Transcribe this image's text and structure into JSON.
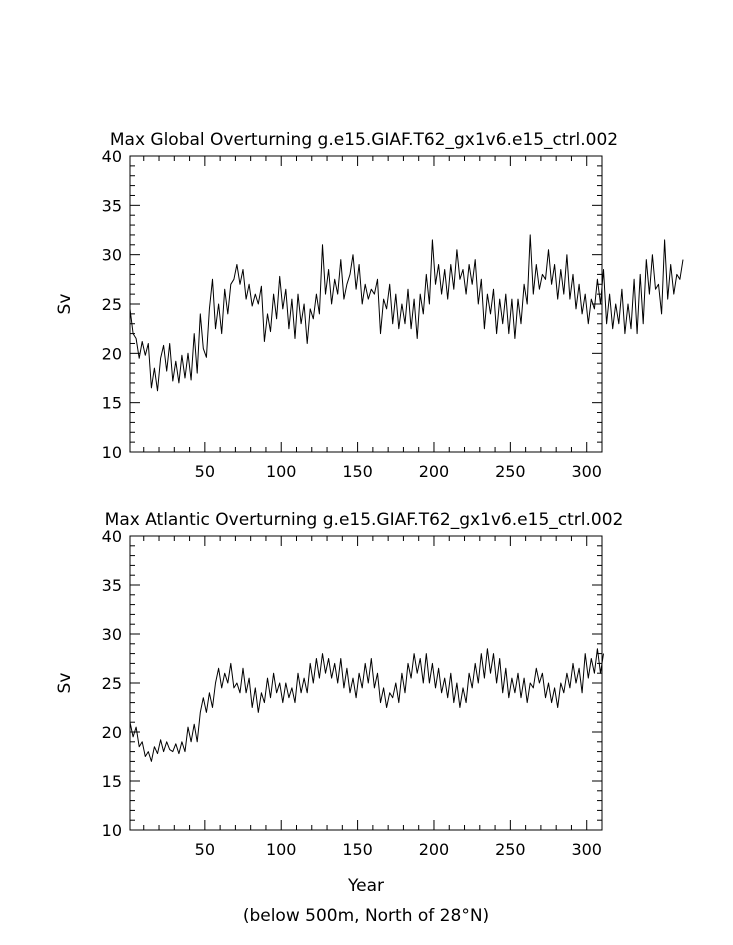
{
  "footer_note": "(below 500m, North of 28°N)",
  "chart_data": [
    {
      "type": "line",
      "title": "Max Global Overturning g.e15.GIAF.T62_gx1v6.e15_ctrl.002",
      "xlabel": "",
      "ylabel": "Sv",
      "xlim": [
        1,
        310
      ],
      "ylim": [
        10,
        40
      ],
      "xticks": [
        50,
        100,
        150,
        200,
        250,
        300
      ],
      "yticks": [
        10,
        15,
        20,
        25,
        30,
        35,
        40
      ],
      "grid": false,
      "line_color": "#000000",
      "x_start": 1,
      "x_step": 2,
      "series": [
        {
          "values": [
            24.5,
            22.0,
            21.5,
            19.5,
            21.2,
            19.8,
            21.0,
            16.5,
            18.5,
            16.2,
            19.5,
            20.8,
            18.2,
            21.0,
            17.2,
            19.2,
            17.0,
            19.8,
            17.5,
            20.0,
            17.3,
            22.0,
            18.0,
            24.0,
            20.5,
            19.6,
            24.5,
            27.5,
            22.5,
            25.0,
            22.0,
            26.5,
            24.0,
            27.0,
            27.5,
            29.0,
            27.0,
            28.5,
            25.5,
            27.0,
            24.8,
            26.0,
            25.0,
            26.8,
            21.2,
            24.0,
            22.2,
            26.0,
            23.5,
            27.8,
            24.5,
            26.5,
            22.5,
            25.5,
            21.5,
            26.0,
            23.0,
            25.0,
            21.0,
            24.5,
            23.5,
            26.0,
            24.0,
            31.0,
            26.0,
            28.5,
            25.0,
            27.5,
            26.0,
            29.5,
            25.5,
            27.0,
            28.0,
            30.0,
            26.5,
            29.0,
            25.0,
            27.0,
            25.5,
            26.5,
            26.0,
            27.5,
            22.0,
            25.5,
            24.5,
            27.0,
            23.0,
            26.0,
            22.5,
            25.0,
            23.0,
            26.5,
            22.5,
            25.5,
            21.5,
            26.0,
            24.0,
            28.0,
            25.0,
            31.5,
            27.0,
            29.0,
            26.0,
            28.5,
            25.5,
            29.0,
            26.5,
            30.5,
            27.5,
            28.5,
            26.0,
            29.0,
            27.0,
            29.5,
            25.0,
            27.5,
            22.5,
            26.0,
            24.0,
            26.5,
            22.0,
            25.5,
            23.0,
            26.0,
            22.0,
            25.5,
            21.5,
            25.5,
            23.0,
            27.0,
            25.0,
            32.0,
            26.0,
            29.0,
            26.5,
            28.0,
            27.5,
            30.5,
            27.0,
            29.0,
            25.5,
            28.5,
            26.0,
            30.0,
            25.5,
            28.0,
            24.5,
            27.0,
            24.0,
            26.0,
            23.0,
            25.5,
            24.5,
            27.5,
            25.0,
            28.5,
            23.0,
            26.0,
            22.5,
            25.0,
            23.0,
            26.5,
            22.0,
            25.0,
            22.5,
            27.5,
            22.0,
            28.0,
            23.0,
            29.5,
            26.0,
            30.0,
            26.5,
            27.0,
            24.0,
            31.5,
            25.5,
            29.0,
            26.0,
            28.0,
            27.5,
            29.5
          ]
        }
      ]
    },
    {
      "type": "line",
      "title": "Max Atlantic Overturning g.e15.GIAF.T62_gx1v6.e15_ctrl.002",
      "xlabel": "Year",
      "ylabel": "Sv",
      "xlim": [
        1,
        310
      ],
      "ylim": [
        10,
        40
      ],
      "xticks": [
        50,
        100,
        150,
        200,
        250,
        300
      ],
      "yticks": [
        10,
        15,
        20,
        25,
        30,
        35,
        40
      ],
      "grid": false,
      "line_color": "#000000",
      "x_start": 1,
      "x_step": 2,
      "series": [
        {
          "values": [
            21.0,
            19.5,
            20.5,
            18.5,
            19.0,
            17.5,
            18.0,
            17.0,
            18.5,
            17.8,
            19.2,
            18.0,
            19.0,
            18.2,
            18.0,
            18.8,
            17.8,
            19.0,
            18.0,
            20.5,
            19.0,
            20.8,
            19.0,
            22.0,
            23.5,
            22.0,
            24.0,
            22.5,
            25.0,
            26.5,
            24.5,
            26.0,
            25.0,
            27.0,
            24.5,
            25.0,
            24.0,
            26.5,
            24.0,
            25.5,
            22.5,
            24.5,
            22.0,
            24.0,
            23.0,
            25.5,
            23.5,
            26.0,
            24.0,
            25.0,
            23.0,
            25.0,
            23.5,
            24.5,
            23.0,
            26.0,
            24.0,
            25.5,
            24.0,
            27.0,
            25.0,
            27.5,
            25.5,
            28.0,
            26.0,
            27.5,
            25.5,
            27.0,
            25.0,
            27.5,
            24.5,
            26.5,
            24.0,
            25.5,
            23.5,
            26.0,
            24.5,
            27.0,
            25.0,
            27.5,
            24.5,
            26.0,
            23.0,
            24.5,
            22.5,
            24.0,
            23.5,
            25.0,
            23.0,
            26.0,
            24.0,
            27.0,
            25.5,
            28.0,
            26.0,
            27.5,
            25.0,
            28.0,
            25.0,
            27.0,
            24.5,
            26.5,
            24.0,
            25.5,
            23.5,
            26.0,
            23.0,
            25.0,
            22.5,
            24.5,
            23.0,
            26.0,
            24.5,
            27.0,
            25.0,
            28.0,
            25.5,
            28.5,
            26.0,
            28.0,
            25.0,
            27.5,
            24.0,
            26.5,
            23.5,
            25.5,
            24.0,
            26.0,
            23.5,
            25.5,
            23.0,
            25.0,
            24.5,
            26.5,
            25.0,
            26.0,
            23.5,
            25.0,
            23.0,
            24.5,
            22.5,
            25.0,
            24.0,
            26.0,
            24.5,
            27.0,
            25.0,
            26.5,
            24.0,
            28.0,
            25.5,
            27.5,
            26.0,
            28.5,
            26.0,
            28.0
          ]
        }
      ]
    }
  ]
}
